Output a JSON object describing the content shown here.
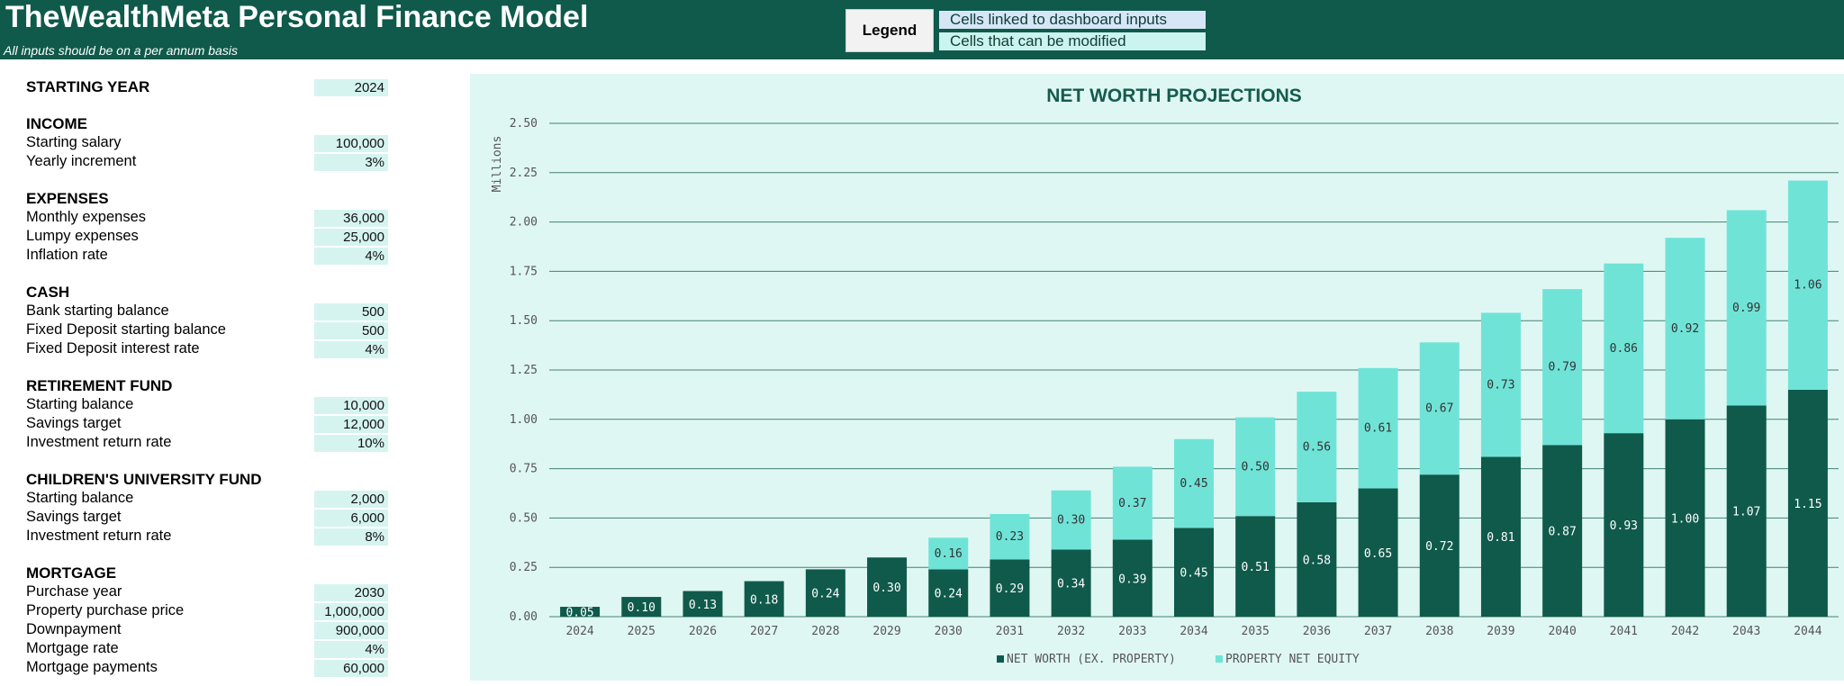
{
  "header": {
    "title": "TheWealthMeta Personal Finance Model",
    "subtitle": "All inputs should be on a per annum basis",
    "legend_label": "Legend",
    "legend_items": [
      "Cells linked to dashboard inputs",
      "Cells that can be modified"
    ]
  },
  "colors": {
    "header_bg": "#0f5a4b",
    "input_cell": "#d5f4f0",
    "linked_cell": "#d6e6f7",
    "net_worth": "#0f5a4b",
    "property_equity": "#70e3d7",
    "chart_bg": "#dff7f3"
  },
  "inputs": {
    "starting_year": {
      "label": "STARTING YEAR",
      "value": "2024"
    },
    "income": {
      "title": "INCOME",
      "rows": [
        {
          "label": "Starting salary",
          "value": "100,000"
        },
        {
          "label": "Yearly increment",
          "value": "3%"
        }
      ]
    },
    "expenses": {
      "title": "EXPENSES",
      "rows": [
        {
          "label": "Monthly expenses",
          "value": "36,000"
        },
        {
          "label": "Lumpy expenses",
          "value": "25,000"
        },
        {
          "label": "Inflation rate",
          "value": "4%"
        }
      ]
    },
    "cash": {
      "title": "CASH",
      "rows": [
        {
          "label": "Bank starting balance",
          "value": "500"
        },
        {
          "label": "Fixed Deposit starting balance",
          "value": "500"
        },
        {
          "label": "Fixed Deposit interest rate",
          "value": "4%"
        }
      ]
    },
    "retirement": {
      "title": "RETIREMENT FUND",
      "rows": [
        {
          "label": "Starting balance",
          "value": "10,000"
        },
        {
          "label": "Savings target",
          "value": "12,000"
        },
        {
          "label": "Investment return rate",
          "value": "10%"
        }
      ]
    },
    "university": {
      "title": "CHILDREN'S UNIVERSITY FUND",
      "rows": [
        {
          "label": "Starting balance",
          "value": "2,000"
        },
        {
          "label": "Savings target",
          "value": "6,000"
        },
        {
          "label": "Investment return rate",
          "value": "8%"
        }
      ]
    },
    "mortgage": {
      "title": "MORTGAGE",
      "rows": [
        {
          "label": "Purchase year",
          "value": "2030"
        },
        {
          "label": "Property purchase price",
          "value": "1,000,000"
        },
        {
          "label": "Downpayment",
          "value": "900,000"
        },
        {
          "label": "Mortgage rate",
          "value": "4%"
        },
        {
          "label": "Mortgage payments",
          "value": "60,000"
        }
      ]
    }
  },
  "chart_data": {
    "type": "bar",
    "stacked": true,
    "title": "NET WORTH PROJECTIONS",
    "ylabel": "Millions",
    "ylim": [
      0,
      2.5
    ],
    "yticks": [
      "0.00",
      "0.25",
      "0.50",
      "0.75",
      "1.00",
      "1.25",
      "1.50",
      "1.75",
      "2.00",
      "2.25",
      "2.50"
    ],
    "grid": true,
    "legend_position": "bottom",
    "categories": [
      "2024",
      "2025",
      "2026",
      "2027",
      "2028",
      "2029",
      "2030",
      "2031",
      "2032",
      "2033",
      "2034",
      "2035",
      "2036",
      "2037",
      "2038",
      "2039",
      "2040",
      "2041",
      "2042",
      "2043",
      "2044"
    ],
    "series": [
      {
        "name": "NET WORTH (EX. PROPERTY)",
        "color": "#0f5a4b",
        "values": [
          0.05,
          0.1,
          0.13,
          0.18,
          0.24,
          0.3,
          0.24,
          0.29,
          0.34,
          0.39,
          0.45,
          0.51,
          0.58,
          0.65,
          0.72,
          0.81,
          0.87,
          0.93,
          1.0,
          1.07,
          1.15
        ],
        "labels": [
          "0.05",
          "0.10",
          "0.13",
          "0.18",
          "0.24",
          "0.30",
          "0.24",
          "0.29",
          "0.34",
          "0.39",
          "0.45",
          "0.51",
          "0.58",
          "0.65",
          "0.72",
          "0.81",
          "0.87",
          "0.93",
          "1.00",
          "1.07",
          "1.15"
        ]
      },
      {
        "name": "PROPERTY NET EQUITY",
        "color": "#70e3d7",
        "values": [
          0,
          0,
          0,
          0,
          0,
          0,
          0.16,
          0.23,
          0.3,
          0.37,
          0.45,
          0.5,
          0.56,
          0.61,
          0.67,
          0.73,
          0.79,
          0.86,
          0.92,
          0.99,
          1.06
        ],
        "labels": [
          "",
          "",
          "",
          "",
          "",
          "",
          "0.16",
          "0.23",
          "0.30",
          "0.37",
          "0.45",
          "0.50",
          "0.56",
          "0.61",
          "0.67",
          "0.73",
          "0.79",
          "0.86",
          "0.92",
          "0.99",
          "1.06"
        ]
      }
    ]
  }
}
